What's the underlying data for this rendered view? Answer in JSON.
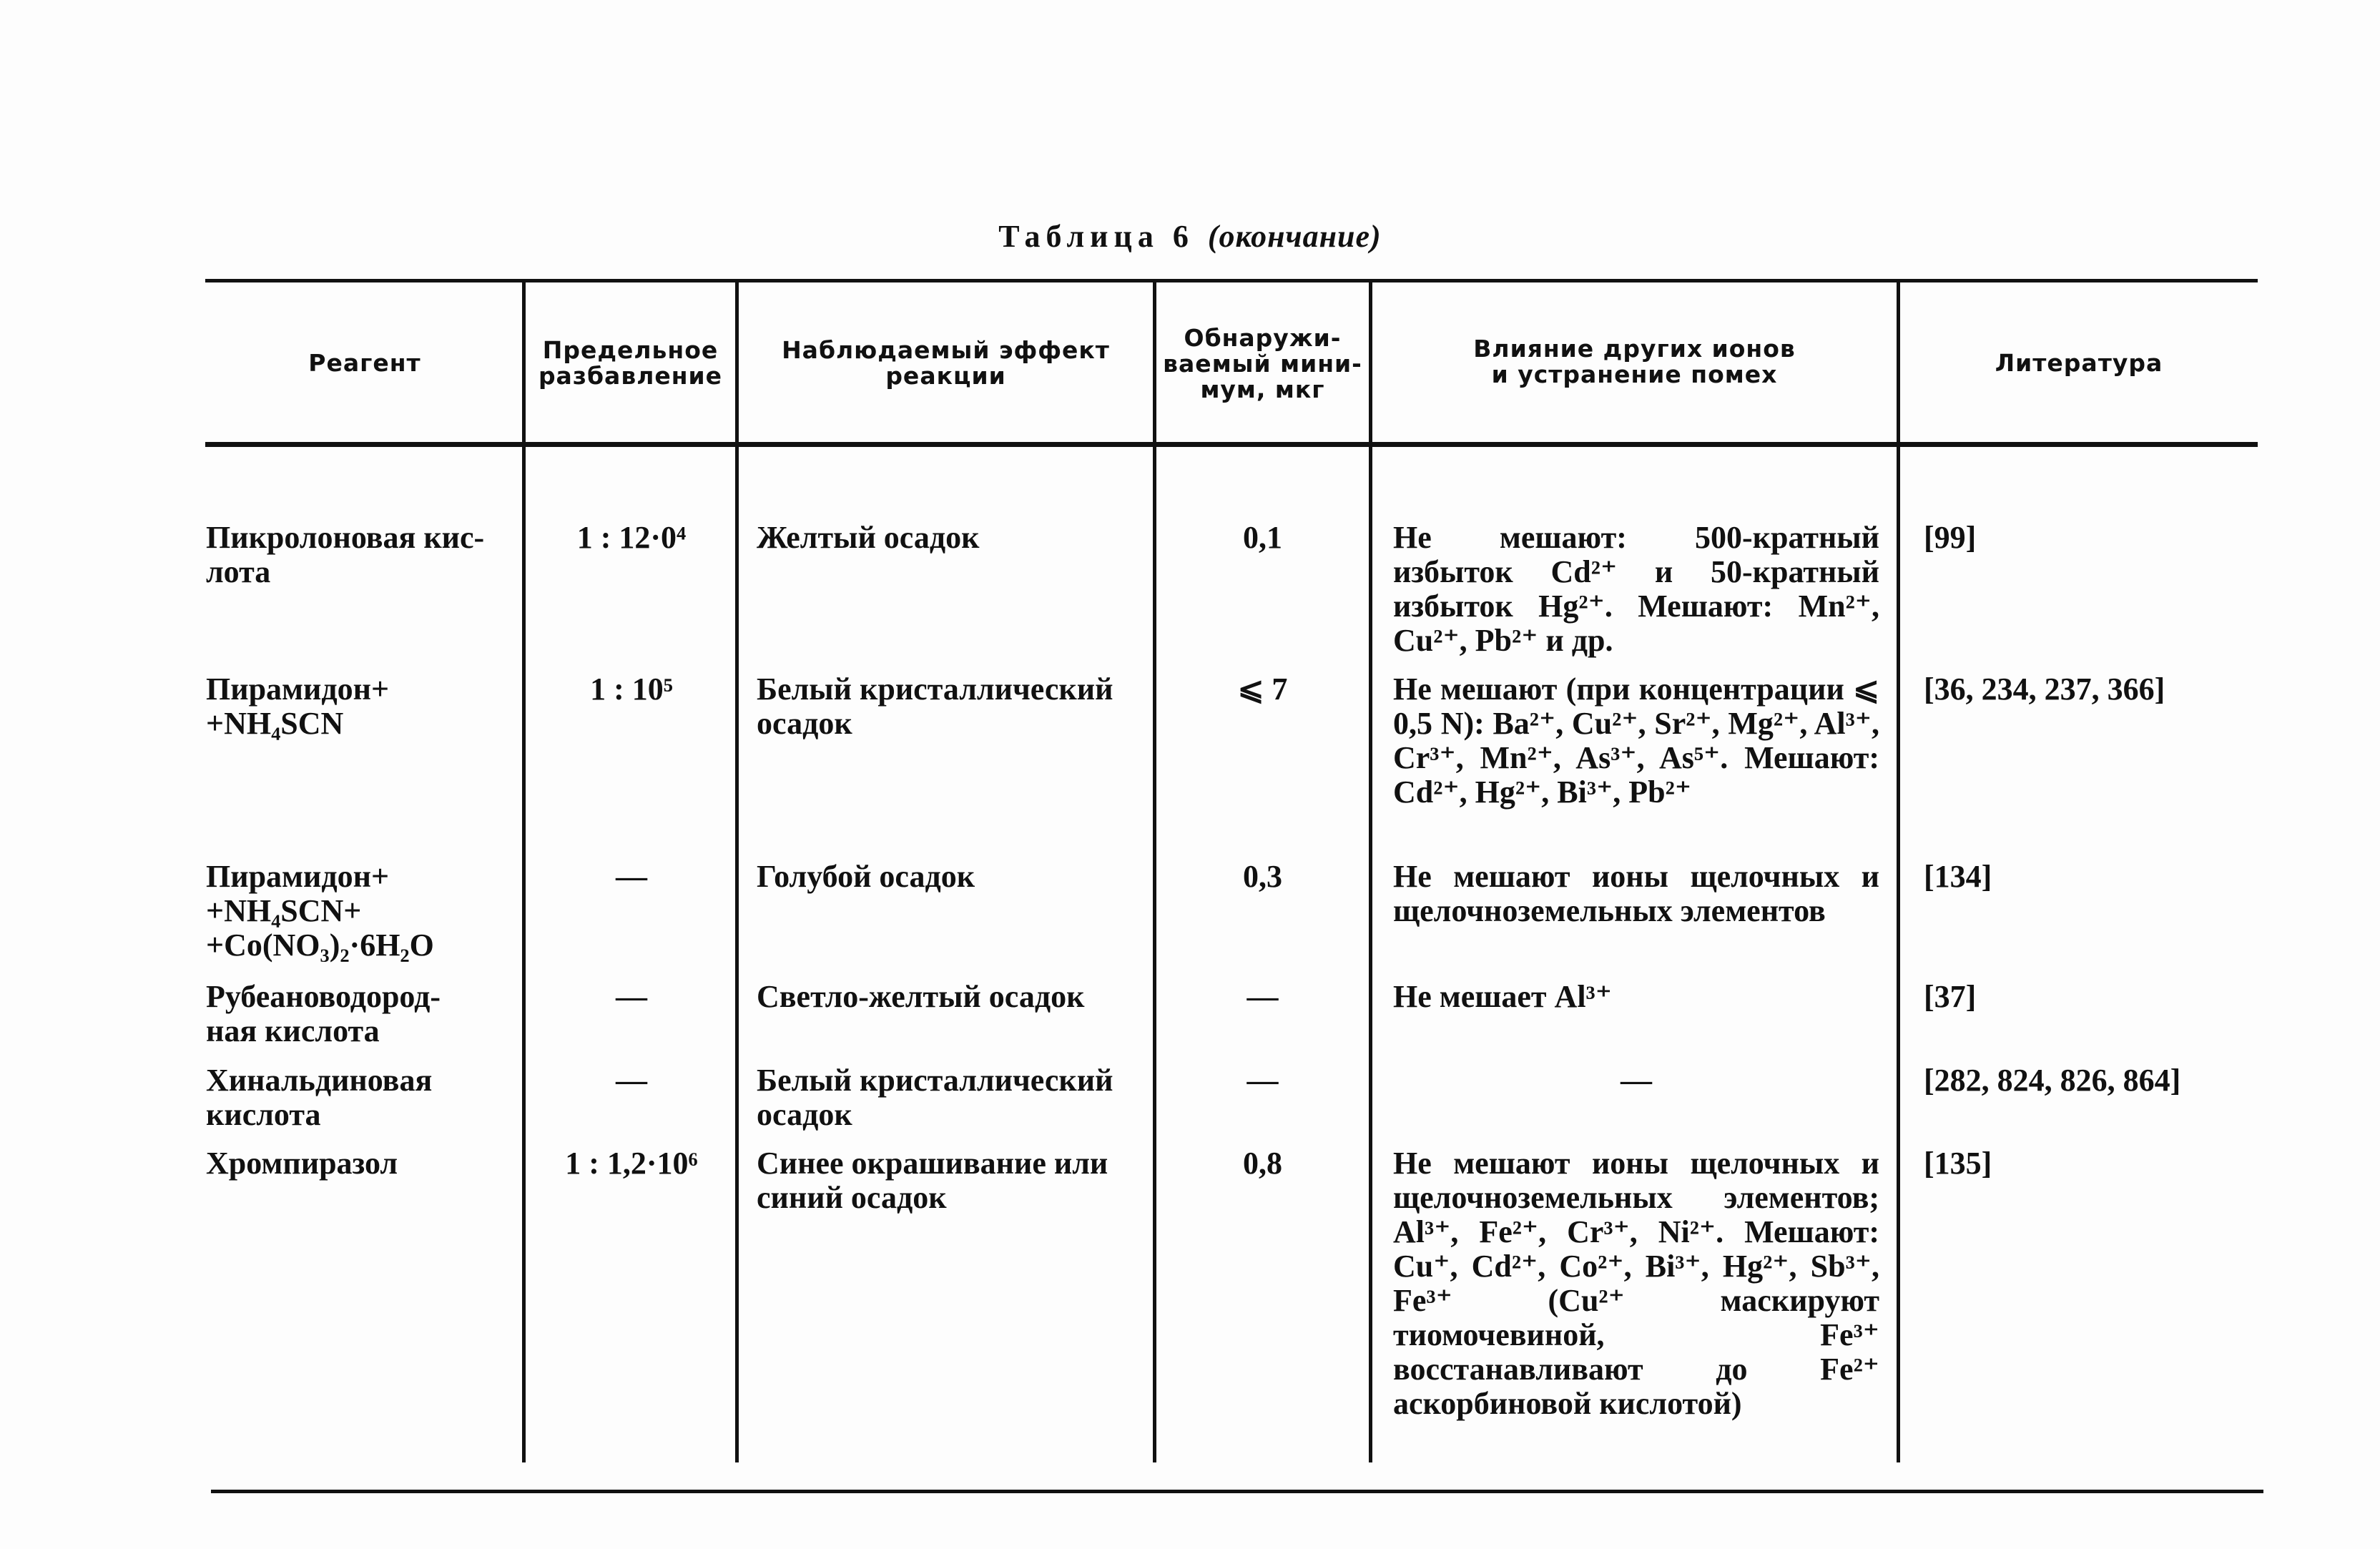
{
  "title": {
    "label": "Таблица 6",
    "note": "(окончание)"
  },
  "headers": [
    "Реагент",
    "Предельное\nразбавление",
    "Наблюдаемый эффект\nреакции",
    "Обнаружи-\nваемый мини-\nмум, мкг",
    "Влияние других ионов\nи устранение помех",
    "Литература"
  ],
  "rows": [
    {
      "reagent": "Пикролоновая кис-\nлота",
      "dilution": "1 : 12·0⁴",
      "effect": "Желтый осадок",
      "minimum": "0,1",
      "interference": "Не мешают: 500-кратный избыток Cd²⁺ и 50-кратный избыток Hg²⁺. Мешают: Mn²⁺, Cu²⁺, Pb²⁺ и др.",
      "literature": "[99]"
    },
    {
      "reagent": "Пирамидон+\n+NH₄SCN",
      "dilution": "1 : 10⁵",
      "effect": "Белый кристаллический\nосадок",
      "minimum": "⩽ 7",
      "interference": "Не мешают (при концентрации ⩽ 0,5 N): Ba²⁺, Cu²⁺, Sr²⁺, Mg²⁺, Al³⁺, Cr³⁺, Mn²⁺, As³⁺, As⁵⁺. Мешают: Cd²⁺, Hg²⁺, Bi³⁺, Pb²⁺",
      "literature": "[36, 234, 237, 366]"
    },
    {
      "reagent": "Пирамидон+\n+NH₄SCN+\n+Co(NO₃)₂·6H₂O",
      "dilution": "—",
      "effect": "Голубой осадок",
      "minimum": "0,3",
      "interference": "Не мешают ионы щелочных и щелочноземельных элементов",
      "literature": "[134]"
    },
    {
      "reagent": "Рубеановодород-\nная кислота",
      "dilution": "—",
      "effect": "Светло-желтый осадок",
      "minimum": "—",
      "interference": "Не мешает Al³⁺",
      "literature": "[37]"
    },
    {
      "reagent": "Хинальдиновая\nкислота",
      "dilution": "—",
      "effect": "Белый кристаллический\nосадок",
      "minimum": "—",
      "interference": "—",
      "literature": "[282, 824, 826, 864]"
    },
    {
      "reagent": "Хромпиразол",
      "dilution": "1 : 1,2·10⁶",
      "effect": "Синее окрашивание или\nсиний осадок",
      "minimum": "0,8",
      "interference": "Не мешают ионы щелочных и щелочноземельных элементов; Al³⁺, Fe²⁺, Cr³⁺, Ni²⁺. Мешают: Cu⁺, Cd²⁺, Co²⁺, Bi³⁺, Hg²⁺, Sb³⁺, Fe³⁺ (Cu²⁺ маскируют тиомочевиной, Fe³⁺ восстанавливают до Fe²⁺ аскорбиновой кислотой)",
      "literature": "[135]"
    }
  ]
}
